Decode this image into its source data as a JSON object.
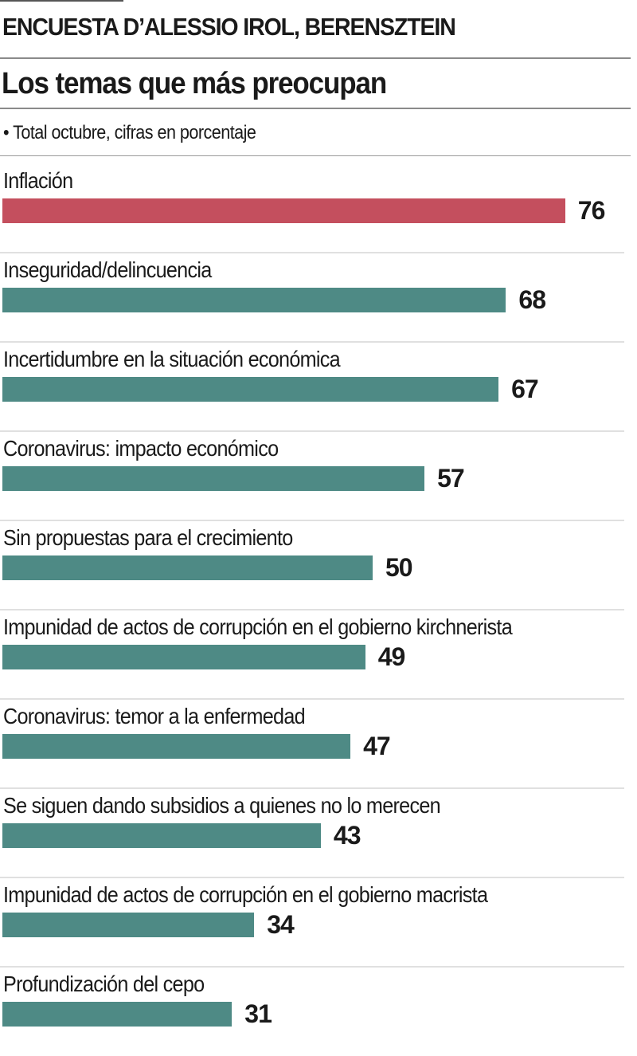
{
  "header": {
    "kicker": "ENCUESTA D’ALESSIO IROL, BERENSZTEIN",
    "title": "Los temas que más preocupan",
    "subtitle": "• Total octubre, cifras en porcentaje"
  },
  "colors": {
    "highlight": "#c44f5e",
    "default": "#4e8a85"
  },
  "chart_data": {
    "type": "bar",
    "orientation": "horizontal",
    "title": "Los temas que más preocupan",
    "subtitle": "Total octubre, cifras en porcentaje",
    "xlabel": "",
    "ylabel": "",
    "xlim": [
      0,
      100
    ],
    "grid": false,
    "legend": "none",
    "categories": [
      "Inflación",
      "Inseguridad/delincuencia",
      "Incertidumbre en la situación económica",
      "Coronavirus: impacto económico",
      "Sin propuestas para el crecimiento",
      "Impunidad de actos de corrupción en el gobierno kirchnerista",
      "Coronavirus: temor a la enfermedad",
      "Se siguen dando subsidios a quienes no lo merecen",
      "Impunidad de actos de corrupción en el gobierno macrista",
      "Profundización del cepo"
    ],
    "values": [
      76,
      68,
      67,
      57,
      50,
      49,
      47,
      43,
      34,
      31
    ],
    "highlighted": [
      true,
      false,
      false,
      false,
      false,
      false,
      false,
      false,
      false,
      false
    ]
  }
}
